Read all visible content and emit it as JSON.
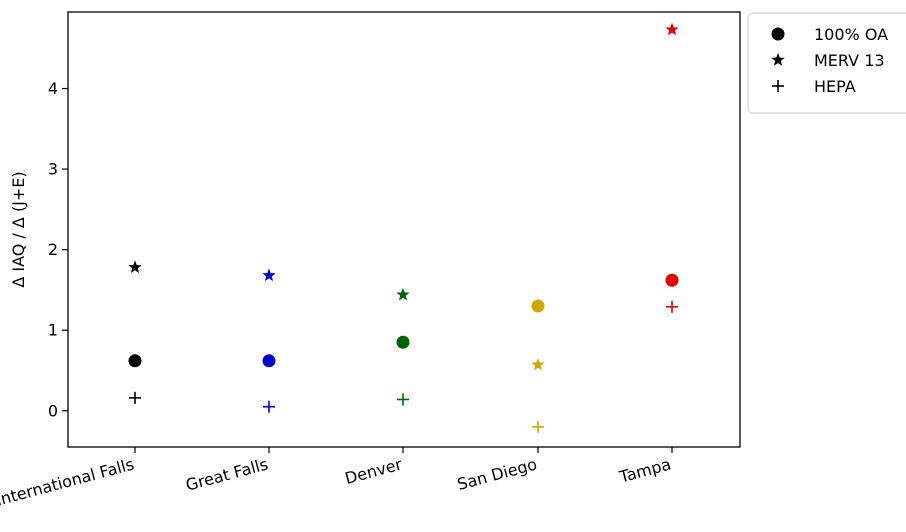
{
  "chart_data": {
    "type": "scatter",
    "title": "",
    "xlabel": "",
    "ylabel": "Δ IAQ / Δ (J+E)",
    "categories": [
      "International Falls",
      "Great Falls",
      "Denver",
      "San Diego",
      "Tampa"
    ],
    "category_colors": [
      "#000000",
      "#0000cc",
      "#006400",
      "#c8aa00",
      "#e00000"
    ],
    "ylim": [
      -0.45,
      4.95
    ],
    "yticks": [
      0,
      1,
      2,
      3,
      4
    ],
    "grid": false,
    "legend_position": "outside-top-right",
    "series": [
      {
        "name": "100% OA",
        "marker": "circle",
        "values": [
          0.62,
          0.62,
          0.85,
          1.3,
          1.62
        ]
      },
      {
        "name": "MERV 13",
        "marker": "star",
        "values": [
          1.78,
          1.68,
          1.44,
          0.57,
          4.73
        ]
      },
      {
        "name": "HEPA",
        "marker": "plus",
        "values": [
          0.16,
          0.05,
          0.14,
          -0.2,
          1.29
        ]
      }
    ]
  }
}
